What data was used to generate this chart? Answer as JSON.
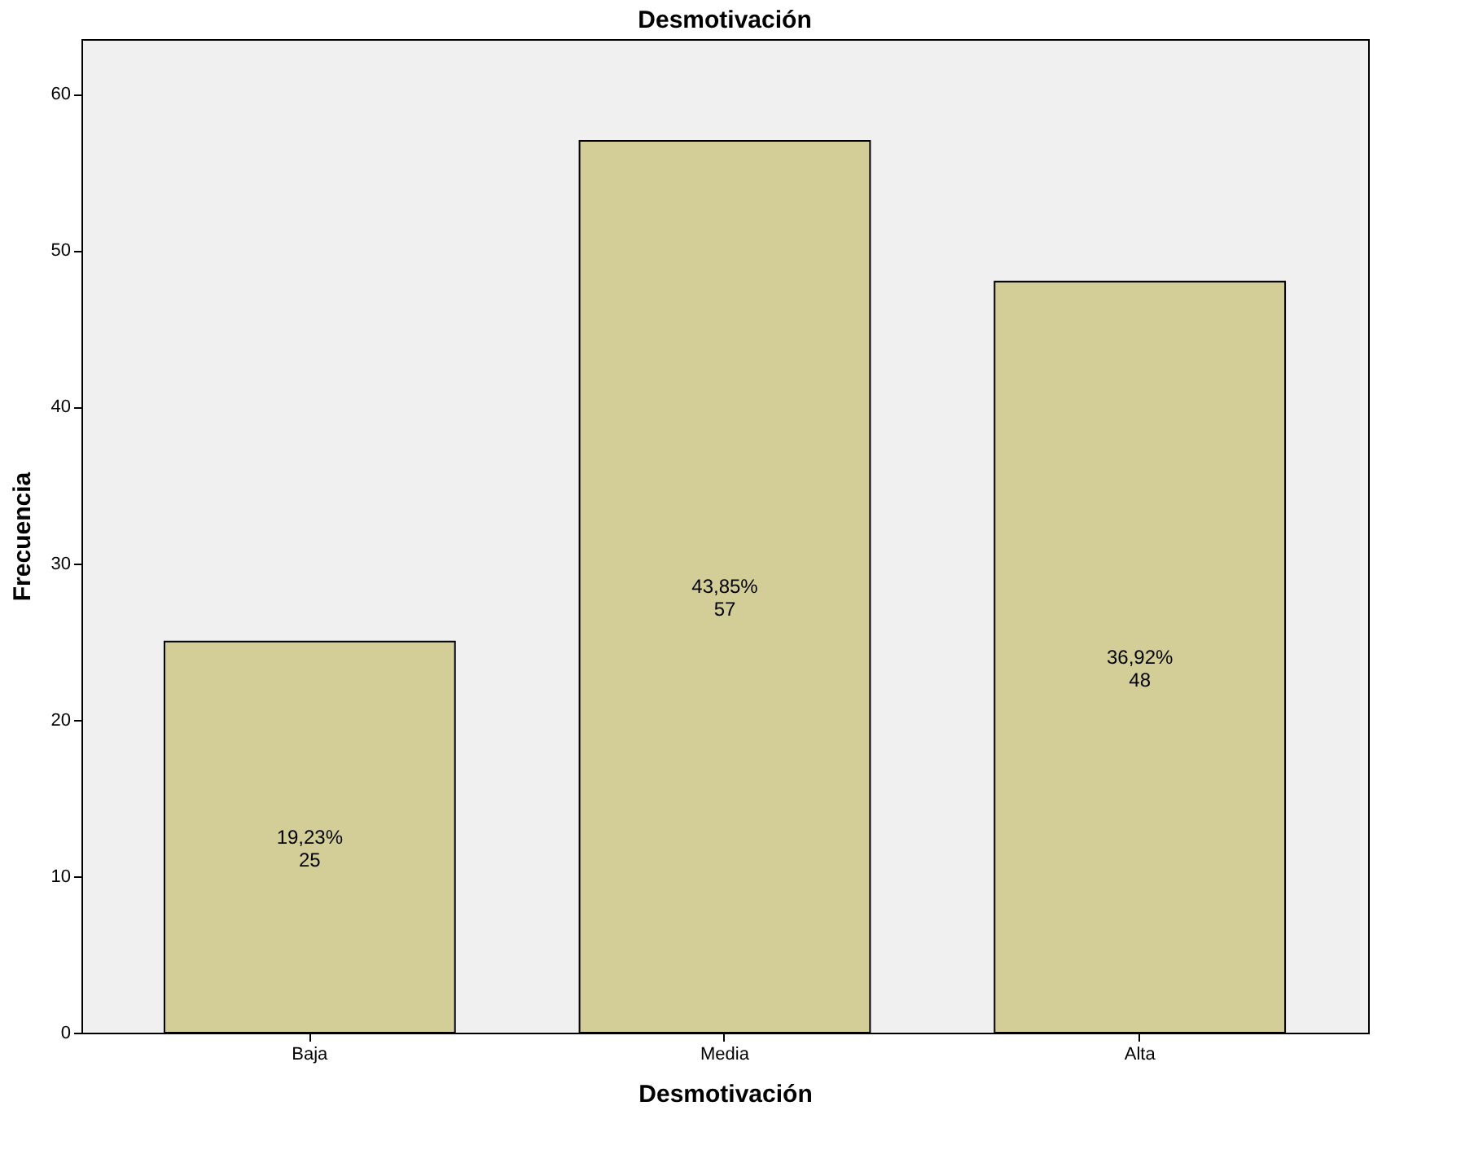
{
  "chart_data": {
    "type": "bar",
    "title": "Desmotivación",
    "xlabel": "Desmotivación",
    "ylabel": "Frecuencia",
    "categories": [
      "Baja",
      "Media",
      "Alta"
    ],
    "values": [
      25,
      57,
      48
    ],
    "value_labels": [
      "19,23%\n25",
      "43,85%\n57",
      "36,92%\n48"
    ],
    "color": "#d3ce97",
    "ylim": [
      0,
      63.5
    ],
    "yticks": [
      0,
      10,
      20,
      30,
      40,
      50,
      60
    ],
    "grid": false
  }
}
